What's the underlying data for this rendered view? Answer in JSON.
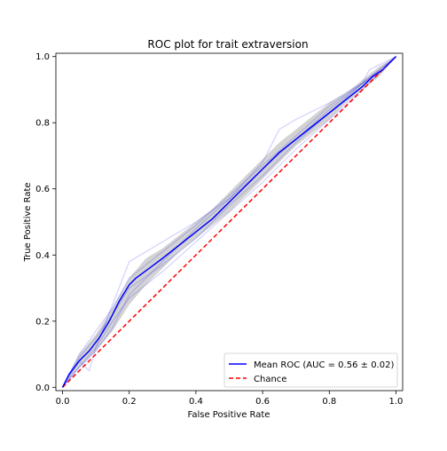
{
  "chart_data": {
    "type": "line",
    "title": "ROC plot for trait extraversion",
    "xlabel": "False Positive Rate",
    "ylabel": "True Positive Rate",
    "xlim": [
      -0.02,
      1.02
    ],
    "ylim": [
      -0.01,
      1.01
    ],
    "x_ticks": [
      "0.0",
      "0.2",
      "0.4",
      "0.6",
      "0.8",
      "1.0"
    ],
    "y_ticks": [
      "0.0",
      "0.2",
      "0.4",
      "0.6",
      "0.8",
      "1.0"
    ],
    "grid": false,
    "legend_position": "lower right",
    "series": [
      {
        "name": "Mean ROC (AUC = 0.56 ± 0.02)",
        "color": "#0000ff",
        "style": "solid",
        "x": [
          0.0,
          0.02,
          0.05,
          0.08,
          0.11,
          0.14,
          0.17,
          0.2,
          0.22,
          0.26,
          0.3,
          0.35,
          0.4,
          0.45,
          0.5,
          0.55,
          0.6,
          0.65,
          0.7,
          0.75,
          0.8,
          0.85,
          0.9,
          0.93,
          0.96,
          1.0
        ],
        "y": [
          0.0,
          0.04,
          0.08,
          0.11,
          0.15,
          0.2,
          0.26,
          0.31,
          0.33,
          0.36,
          0.39,
          0.43,
          0.47,
          0.51,
          0.56,
          0.61,
          0.66,
          0.71,
          0.75,
          0.79,
          0.83,
          0.87,
          0.91,
          0.94,
          0.96,
          1.0
        ]
      },
      {
        "name": "Chance",
        "color": "#ff0000",
        "style": "dashed",
        "x": [
          0.0,
          1.0
        ],
        "y": [
          0.0,
          1.0
        ]
      }
    ],
    "band": {
      "color": "#808080",
      "opacity": 0.35,
      "x": [
        0.0,
        0.05,
        0.1,
        0.15,
        0.2,
        0.25,
        0.3,
        0.35,
        0.4,
        0.45,
        0.5,
        0.55,
        0.6,
        0.65,
        0.7,
        0.75,
        0.8,
        0.85,
        0.9,
        0.95,
        1.0
      ],
      "lower": [
        0.0,
        0.06,
        0.11,
        0.17,
        0.25,
        0.31,
        0.36,
        0.41,
        0.45,
        0.49,
        0.53,
        0.58,
        0.63,
        0.68,
        0.73,
        0.77,
        0.81,
        0.86,
        0.9,
        0.94,
        1.0
      ],
      "upper": [
        0.0,
        0.1,
        0.16,
        0.24,
        0.33,
        0.39,
        0.42,
        0.46,
        0.5,
        0.54,
        0.59,
        0.64,
        0.69,
        0.74,
        0.78,
        0.82,
        0.86,
        0.89,
        0.93,
        0.97,
        1.0
      ]
    },
    "folds": {
      "color": "#0000ff",
      "opacity": 0.18,
      "lines": [
        {
          "x": [
            0.0,
            0.05,
            0.08,
            0.1,
            0.15,
            0.2,
            0.3,
            0.4,
            0.5,
            0.6,
            0.65,
            0.7,
            0.8,
            0.9,
            0.92,
            1.0
          ],
          "y": [
            0.0,
            0.08,
            0.05,
            0.12,
            0.25,
            0.38,
            0.44,
            0.5,
            0.57,
            0.68,
            0.78,
            0.81,
            0.86,
            0.92,
            0.96,
            1.0
          ]
        },
        {
          "x": [
            0.0,
            0.04,
            0.1,
            0.15,
            0.2,
            0.3,
            0.4,
            0.5,
            0.6,
            0.7,
            0.8,
            0.9,
            1.0
          ],
          "y": [
            0.0,
            0.05,
            0.12,
            0.2,
            0.27,
            0.35,
            0.44,
            0.53,
            0.62,
            0.72,
            0.81,
            0.9,
            1.0
          ]
        },
        {
          "x": [
            0.0,
            0.05,
            0.1,
            0.15,
            0.2,
            0.3,
            0.4,
            0.5,
            0.6,
            0.7,
            0.8,
            0.9,
            1.0
          ],
          "y": [
            0.0,
            0.09,
            0.15,
            0.22,
            0.3,
            0.37,
            0.45,
            0.55,
            0.64,
            0.74,
            0.83,
            0.92,
            1.0
          ]
        },
        {
          "x": [
            0.0,
            0.05,
            0.1,
            0.15,
            0.2,
            0.3,
            0.4,
            0.5,
            0.6,
            0.7,
            0.8,
            0.9,
            1.0
          ],
          "y": [
            0.0,
            0.06,
            0.11,
            0.18,
            0.28,
            0.38,
            0.48,
            0.57,
            0.66,
            0.75,
            0.84,
            0.92,
            1.0
          ]
        },
        {
          "x": [
            0.0,
            0.05,
            0.1,
            0.15,
            0.2,
            0.3,
            0.4,
            0.5,
            0.6,
            0.7,
            0.8,
            0.9,
            0.95,
            1.0
          ],
          "y": [
            0.0,
            0.1,
            0.17,
            0.24,
            0.33,
            0.41,
            0.49,
            0.58,
            0.67,
            0.76,
            0.85,
            0.92,
            0.95,
            1.0
          ]
        }
      ]
    }
  }
}
